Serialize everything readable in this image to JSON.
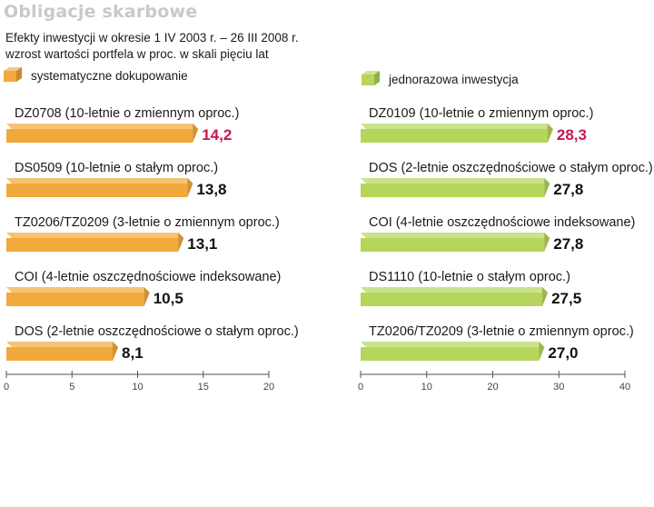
{
  "header": {
    "title": "Obligacje skarbowe",
    "subtitle_line1": "Efekty inwestycji w okresie 1 IV 2003 r. – 26 III 2008 r.",
    "subtitle_line2": "wzrost wartości portfela w proc. w skali pięciu lat"
  },
  "chart_data": [
    {
      "type": "bar",
      "orientation": "horizontal",
      "legend": "systematyczne dokupowanie",
      "color": "#f2a93b",
      "highlight_color": "#c8174f",
      "xlim": [
        0,
        20
      ],
      "xticks": [
        "0",
        "5",
        "10",
        "15",
        "20"
      ],
      "categories": [
        "DZ0708 (10-letnie o zmiennym oproc.)",
        "DS0509 (10-letnie o stałym oproc.)",
        "TZ0206/TZ0209 (3-letnie o zmiennym oproc.)",
        "COI (4-letnie oszczędnościowe indeksowane)",
        "DOS (2-letnie oszczędnościowe o stałym oproc.)"
      ],
      "values": [
        14.2,
        13.8,
        13.1,
        10.5,
        8.1
      ],
      "labels": [
        "14,2",
        "13,8",
        "13,1",
        "10,5",
        "8,1"
      ]
    },
    {
      "type": "bar",
      "orientation": "horizontal",
      "legend": "jednorazowa inwestycja",
      "color": "#b5d65a",
      "highlight_color": "#c8174f",
      "xlim": [
        0,
        40
      ],
      "xticks": [
        "0",
        "10",
        "20",
        "30",
        "40"
      ],
      "categories": [
        "DZ0109 (10-letnie o zmiennym oproc.)",
        "DOS (2-letnie oszczędnościowe o stałym oproc.)",
        "COI (4-letnie oszczędnościowe indeksowane)",
        "DS1110 (10-letnie o stałym oproc.)",
        "TZ0206/TZ0209 (3-letnie o zmiennym oproc.)"
      ],
      "values": [
        28.3,
        27.8,
        27.8,
        27.5,
        27.0
      ],
      "labels": [
        "28,3",
        "27,8",
        "27,8",
        "27,5",
        "27,0"
      ]
    }
  ]
}
